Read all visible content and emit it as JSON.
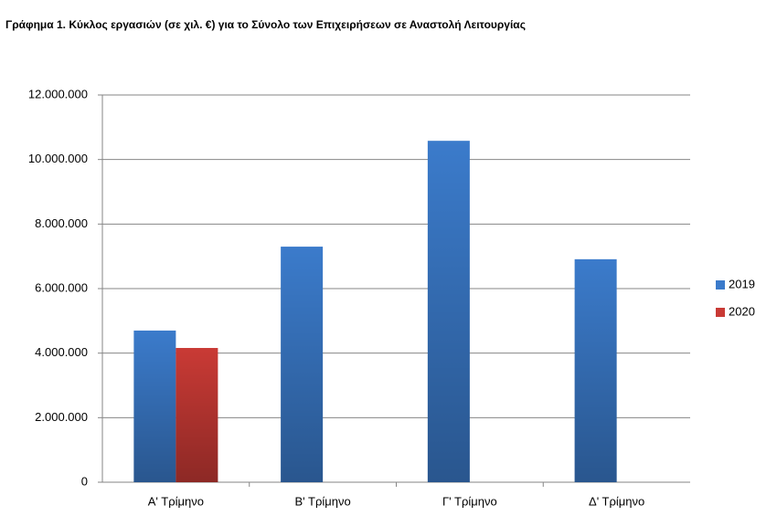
{
  "chart_data": {
    "type": "bar",
    "title": "Γράφημα 1.  Κύκλος εργασιών (σε χιλ. €) για το Σύνολο των Επιχειρήσεων σε Αναστολή Λειτουργίας",
    "categories": [
      "Α' Τρίμηνο",
      "Β' Τρίμηνο",
      "Γ' Τρίμηνο",
      "Δ' Τρίμηνο"
    ],
    "series": [
      {
        "name": "2019",
        "color": "#3b7bcb",
        "values": [
          4700000,
          7300000,
          10580000,
          6910000
        ]
      },
      {
        "name": "2020",
        "color": "#c93a35",
        "values": [
          4160000,
          null,
          null,
          null
        ]
      }
    ],
    "ylim": [
      0,
      12000000
    ],
    "yticks": [
      0,
      {
        "value": 2000000,
        "label": "2.000.000"
      },
      {
        "value": 4000000,
        "label": "4.000.000"
      },
      {
        "value": 6000000,
        "label": "6.000.000"
      },
      {
        "value": 8000000,
        "label": "8.000.000"
      },
      {
        "value": 10000000,
        "label": "10.000.000"
      },
      {
        "value": 12000000,
        "label": "12.000.000"
      }
    ],
    "grid": true,
    "legend": "right"
  }
}
